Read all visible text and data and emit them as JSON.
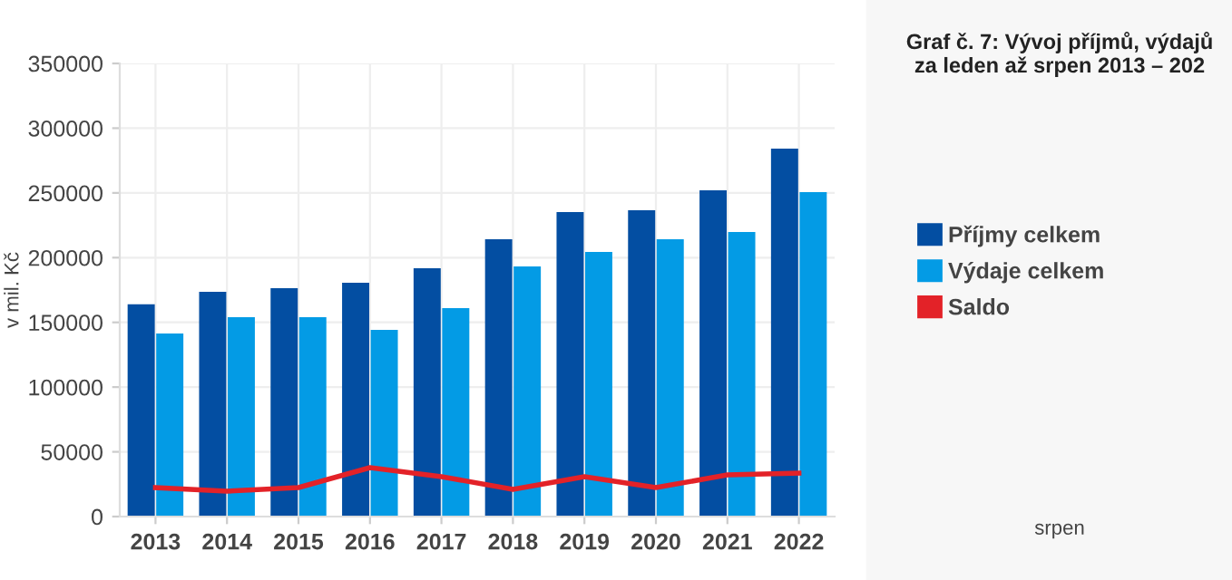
{
  "chart_data": {
    "type": "bar",
    "title": "Graf č. 7: Vývoj příjmů, výdajů\nza leden až srpen 2013 – 202",
    "ylabel": "v mil. Kč",
    "annotations": [
      "srpen"
    ],
    "categories": [
      "2013",
      "2014",
      "2015",
      "2016",
      "2017",
      "2018",
      "2019",
      "2020",
      "2021",
      "2022"
    ],
    "series": [
      {
        "name": "Příjmy celkem",
        "color": "#034ea2",
        "values": [
          164000,
          173600,
          176400,
          180600,
          191800,
          214200,
          235200,
          236600,
          252000,
          284200
        ]
      },
      {
        "name": "Výdaje celkem",
        "color": "#039be5",
        "values": [
          141400,
          154000,
          154000,
          144200,
          161000,
          193200,
          204400,
          214200,
          219800,
          250600
        ]
      },
      {
        "name": "Saldo",
        "type": "line",
        "color": "#e32228",
        "values": [
          22400,
          19600,
          22400,
          37800,
          30800,
          21000,
          30800,
          22400,
          32200,
          33600
        ]
      }
    ],
    "ylim": [
      0,
      350000
    ],
    "yticks": [
      0,
      50000,
      100000,
      150000,
      200000,
      250000,
      300000,
      350000
    ],
    "grid": true,
    "legend": "right"
  }
}
